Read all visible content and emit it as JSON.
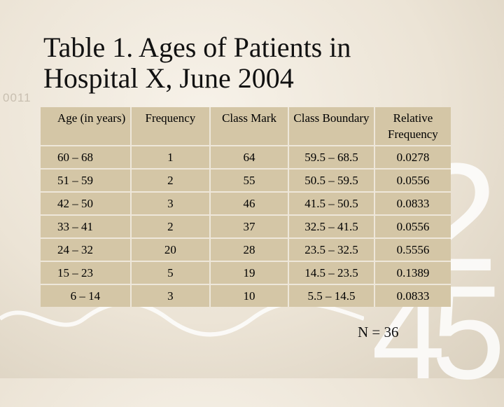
{
  "title": "Table 1. Ages of Patients in Hospital X, June 2004",
  "decorations": {
    "binary": "0011",
    "digit_two": "2",
    "digits_45": "45"
  },
  "table": {
    "headers": [
      "Age (in years)",
      "Frequency",
      "Class Mark",
      "Class Boundary",
      "Relative Frequency"
    ],
    "rows": [
      [
        "60 – 68",
        "1",
        "64",
        "59.5 – 68.5",
        "0.0278"
      ],
      [
        "51 – 59",
        "2",
        "55",
        "50.5 – 59.5",
        "0.0556"
      ],
      [
        "42 – 50",
        "3",
        "46",
        "41.5 – 50.5",
        "0.0833"
      ],
      [
        "33 – 41",
        "2",
        "37",
        "32.5 – 41.5",
        "0.0556"
      ],
      [
        "24 – 32",
        "20",
        "28",
        "23.5 – 32.5",
        "0.5556"
      ],
      [
        "15 – 23",
        "5",
        "19",
        "14.5 – 23.5",
        "0.1389"
      ],
      [
        "6 – 14",
        "3",
        "10",
        "5.5 – 14.5",
        "0.0833"
      ]
    ]
  },
  "footnote": "N = 36"
}
